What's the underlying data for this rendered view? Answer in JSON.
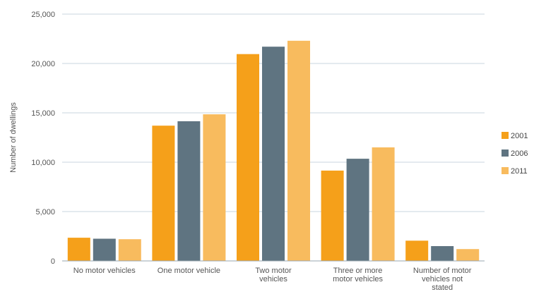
{
  "chart_data": {
    "type": "bar",
    "title": "",
    "xlabel": "",
    "ylabel": "Number of dwellings",
    "ylim": [
      0,
      25000
    ],
    "yticks": [
      0,
      5000,
      10000,
      15000,
      20000,
      25000
    ],
    "ytick_labels": [
      "0",
      "5,000",
      "10,000",
      "15,000",
      "20,000",
      "25,000"
    ],
    "grid": true,
    "legend_position": "right",
    "categories": [
      [
        "No motor vehicles"
      ],
      [
        "One motor vehicle"
      ],
      [
        "Two motor",
        "vehicles"
      ],
      [
        "Three or more",
        "motor vehicles"
      ],
      [
        "Number of motor",
        "vehicles not",
        "stated"
      ]
    ],
    "series": [
      {
        "name": "2001",
        "color": "#f5a01a",
        "values": [
          2350,
          13700,
          20950,
          9150,
          2050
        ]
      },
      {
        "name": "2006",
        "color": "#5f7481",
        "values": [
          2250,
          14150,
          21700,
          10350,
          1500
        ]
      },
      {
        "name": "2011",
        "color": "#f8bb5e",
        "values": [
          2200,
          14850,
          22300,
          11500,
          1200
        ]
      }
    ]
  }
}
